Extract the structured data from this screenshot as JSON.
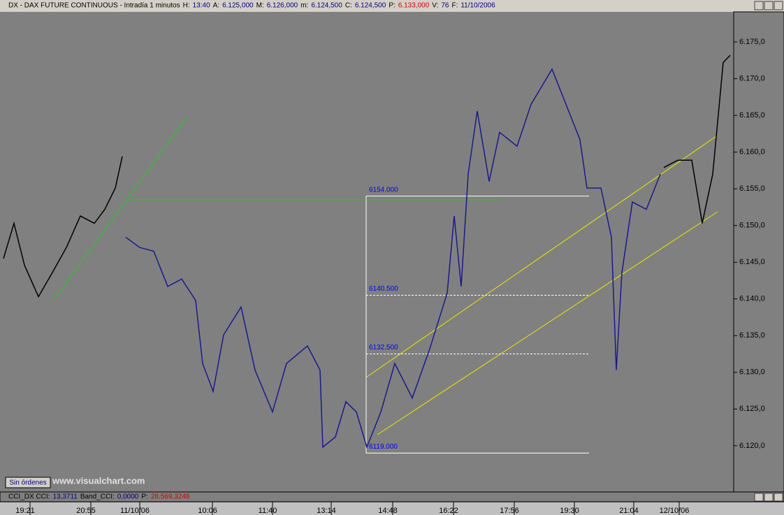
{
  "header": {
    "symbol": "DX - DAX FUTURE CONTINUOUS - Intradía 1 minutos",
    "fields": [
      {
        "label": "H:",
        "value": "13:40"
      },
      {
        "label": "A:",
        "value": "6.125,000"
      },
      {
        "label": "M:",
        "value": "6.126,000"
      },
      {
        "label": "m:",
        "value": "6.124,500"
      },
      {
        "label": "C:",
        "value": "6.124,500"
      },
      {
        "label": "P:",
        "value": "6.133,000"
      },
      {
        "label": "V:",
        "value": "76"
      },
      {
        "label": "F:",
        "value": "11/10/2006"
      }
    ]
  },
  "indicator": {
    "fields": [
      {
        "label": "CCI_DX CCI:",
        "value": "13,3711"
      },
      {
        "label": "Band_CCI:",
        "value": "0,0000"
      },
      {
        "label": "P:",
        "value": "28.569,3248"
      }
    ]
  },
  "button": "Sin órdenes",
  "watermark": "www.visualchart.com",
  "chart_data": {
    "type": "line",
    "x": [
      5,
      20,
      35,
      55,
      75,
      95,
      115,
      135,
      150,
      165,
      175,
      180,
      200,
      220,
      240,
      260,
      280,
      290,
      305,
      320,
      345,
      365,
      390,
      410,
      440,
      458,
      462,
      480,
      495,
      510,
      525,
      545,
      565,
      590,
      615,
      640,
      650,
      660,
      670,
      683,
      700,
      715,
      740,
      760,
      790,
      810,
      830,
      840,
      860,
      875,
      882,
      890,
      905,
      925,
      945,
      950,
      970,
      990,
      1005,
      1020,
      1035,
      1045
    ],
    "series": [
      {
        "color": "#000000",
        "values": [
          6145.5,
          6150.3,
          6144.6,
          6140.3,
          6143.6,
          6147.0,
          6151.3,
          6150.3,
          6152.2,
          6155.1,
          6159.4,
          null,
          null,
          null,
          null,
          null,
          null,
          null,
          null,
          null,
          null,
          null,
          null,
          null,
          null,
          null,
          null,
          null,
          null,
          null,
          null,
          null,
          null,
          null,
          null,
          null,
          null,
          null,
          null,
          null,
          null,
          null,
          null,
          null,
          null,
          null,
          null,
          null,
          null,
          null,
          null,
          null,
          null,
          null,
          null,
          6157.9,
          6158.9,
          6158.9,
          6150.3,
          6157.0,
          6172.2,
          6173.2
        ]
      },
      {
        "color": "#1a1a8c",
        "values": [
          null,
          null,
          null,
          null,
          null,
          null,
          null,
          null,
          null,
          null,
          null,
          6148.4,
          6147.0,
          6146.5,
          6141.7,
          6142.7,
          6139.8,
          6131.2,
          6127.4,
          6135.1,
          6138.9,
          6130.3,
          6124.6,
          6131.2,
          6133.6,
          6130.3,
          6119.8,
          6121.2,
          6126.0,
          6124.6,
          6119.8,
          6124.6,
          6131.2,
          6126.5,
          6133.2,
          6140.8,
          6151.3,
          6141.7,
          6157.0,
          6165.6,
          6156.0,
          6162.7,
          6160.8,
          6166.5,
          6171.3,
          6166.5,
          6161.7,
          6155.1,
          6155.1,
          6148.4,
          6130.3,
          6143.6,
          6153.2,
          6152.2,
          6157.0,
          null,
          null,
          null,
          null,
          null,
          null,
          null
        ]
      }
    ],
    "xlim": [
      0,
      1050
    ],
    "xticks": [
      {
        "value": 43,
        "label": "19:21"
      },
      {
        "value": 130,
        "label": "20:55"
      },
      {
        "value": 200,
        "label": "11/10/06"
      },
      {
        "value": 304,
        "label": "10:06"
      },
      {
        "value": 390,
        "label": "11:40"
      },
      {
        "value": 474,
        "label": "13:14"
      },
      {
        "value": 562,
        "label": "14:48"
      },
      {
        "value": 649,
        "label": "16:22"
      },
      {
        "value": 736,
        "label": "17:56"
      },
      {
        "value": 822,
        "label": "19:30"
      },
      {
        "value": 907,
        "label": "21:04"
      },
      {
        "value": 972,
        "label": "12/10/06"
      }
    ],
    "ylim": [
      6113.8,
      6179.1
    ],
    "yticks": [
      {
        "value": 6120,
        "label": "6.120,0"
      },
      {
        "value": 6125,
        "label": "6.125,0"
      },
      {
        "value": 6130,
        "label": "6.130,0"
      },
      {
        "value": 6135,
        "label": "6.135,0"
      },
      {
        "value": 6140,
        "label": "6.140,0"
      },
      {
        "value": 6145,
        "label": "6.145,0"
      },
      {
        "value": 6150,
        "label": "6.150,0"
      },
      {
        "value": 6155,
        "label": "6.155,0"
      },
      {
        "value": 6160,
        "label": "6.160,0"
      },
      {
        "value": 6165,
        "label": "6.165,0"
      },
      {
        "value": 6170,
        "label": "6.170,0"
      },
      {
        "value": 6175,
        "label": "6.175,0"
      }
    ],
    "annotations": [
      {
        "value": 6154,
        "label": "6154.000"
      },
      {
        "value": 6140.5,
        "label": "6140.500"
      },
      {
        "value": 6132.5,
        "label": "6132.500"
      },
      {
        "value": 6119,
        "label": "6119.000"
      }
    ]
  }
}
